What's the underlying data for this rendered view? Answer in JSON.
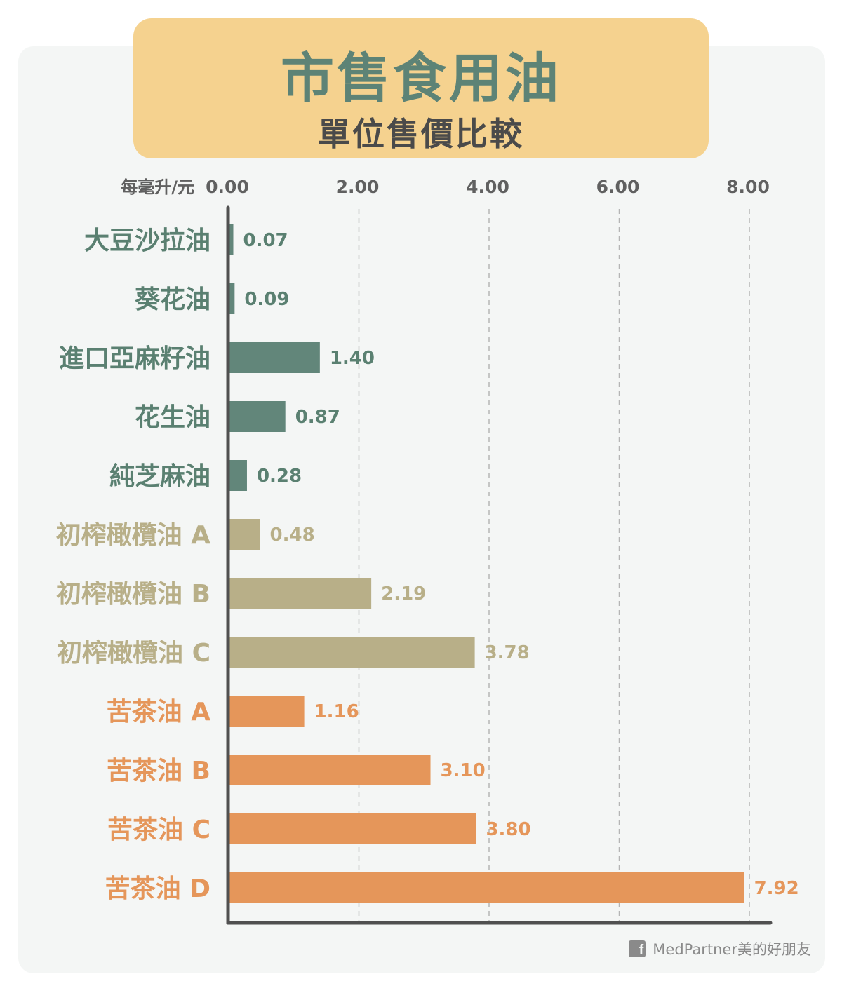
{
  "header": {
    "title": "市售食用油",
    "subtitle": "單位售價比較"
  },
  "footer": {
    "icon": "facebook-icon",
    "credit": "MedPartner美的好朋友"
  },
  "chart_data": {
    "type": "bar",
    "orientation": "horizontal",
    "unit_label": "每毫升/元",
    "xlim": [
      0,
      8
    ],
    "ticks": [
      "0.00",
      "2.00",
      "4.00",
      "6.00",
      "8.00"
    ],
    "grid": "vertical dashed",
    "categories": [
      "大豆沙拉油",
      "葵花油",
      "進口亞麻籽油",
      "花生油",
      "純芝麻油",
      "初榨橄欖油 A",
      "初榨橄欖油 B",
      "初榨橄欖油 C",
      "苦茶油 A",
      "苦茶油 B",
      "苦茶油 C",
      "苦茶油 D"
    ],
    "values": [
      0.07,
      0.09,
      1.4,
      0.87,
      0.28,
      0.48,
      2.19,
      3.78,
      1.16,
      3.1,
      3.8,
      7.92
    ],
    "value_labels": [
      "0.07",
      "0.09",
      "1.40",
      "0.87",
      "0.28",
      "0.48",
      "2.19",
      "3.78",
      "1.16",
      "3.10",
      "3.80",
      "7.92"
    ],
    "groups": [
      0,
      0,
      0,
      0,
      0,
      1,
      1,
      1,
      2,
      2,
      2,
      2
    ],
    "colors": {
      "bar": [
        "#62867a",
        "#b8af88",
        "#e5965a"
      ],
      "label": [
        "#5a8071",
        "#b8af88",
        "#e5965a"
      ],
      "axis": "#505050",
      "grid": "#b5b5b5",
      "tick": "#606060"
    }
  }
}
